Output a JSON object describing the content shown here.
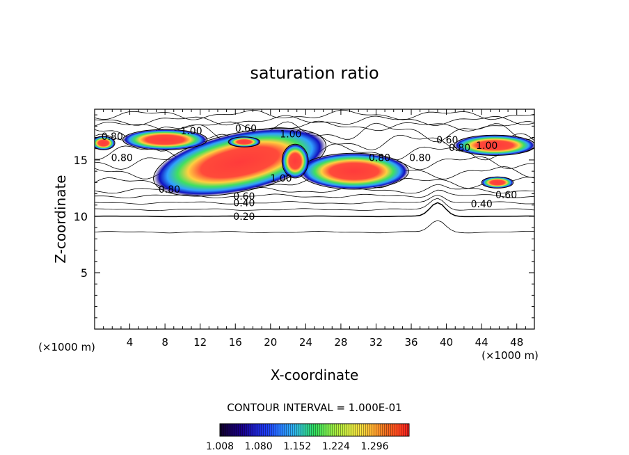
{
  "chart_data": {
    "type": "heatmap",
    "title": "saturation ratio",
    "xlabel": "X-coordinate",
    "ylabel": "Z-coordinate",
    "x_unit_label": "(×1000 m)",
    "z_unit_label": "(×1000 m)",
    "xlim": [
      0,
      50
    ],
    "ylim": [
      0,
      19.5
    ],
    "x_ticks": [
      "4",
      "8",
      "12",
      "16",
      "20",
      "24",
      "28",
      "32",
      "36",
      "40",
      "44",
      "48"
    ],
    "y_ticks": [
      "5",
      "10",
      "15"
    ],
    "contour_interval_label": "CONTOUR INTERVAL = 1.000E-01",
    "contour_labels": [
      {
        "text": "0.80",
        "x": 2.0,
        "z": 17.1
      },
      {
        "text": "1.00",
        "x": 11.0,
        "z": 17.6
      },
      {
        "text": "0.60",
        "x": 17.2,
        "z": 17.8
      },
      {
        "text": "1.00",
        "x": 22.3,
        "z": 17.3
      },
      {
        "text": "0.80",
        "x": 3.1,
        "z": 15.2
      },
      {
        "text": "0.80",
        "x": 8.5,
        "z": 12.4
      },
      {
        "text": "1.00",
        "x": 21.2,
        "z": 13.4
      },
      {
        "text": "0.80",
        "x": 32.4,
        "z": 15.2
      },
      {
        "text": "0.80",
        "x": 37.0,
        "z": 15.2
      },
      {
        "text": "0.60",
        "x": 40.1,
        "z": 16.8
      },
      {
        "text": "0.80",
        "x": 41.5,
        "z": 16.1
      },
      {
        "text": "1.00",
        "x": 44.6,
        "z": 16.3
      },
      {
        "text": "0.60",
        "x": 17.0,
        "z": 11.8
      },
      {
        "text": "0.40",
        "x": 17.0,
        "z": 11.2
      },
      {
        "text": "0.20",
        "x": 17.0,
        "z": 10.0
      },
      {
        "text": "0.60",
        "x": 46.8,
        "z": 11.9
      },
      {
        "text": "0.40",
        "x": 44.0,
        "z": 11.1
      }
    ],
    "colorbar": {
      "range": [
        1.008,
        1.36
      ],
      "tick_labels": [
        "1.008",
        "1.080",
        "1.152",
        "1.224",
        "1.296"
      ]
    },
    "regions": [
      {
        "cx": 16.5,
        "cz": 14.8,
        "rx": 10.0,
        "rz": 2.6,
        "rot": -12
      },
      {
        "cx": 29.5,
        "cz": 14.0,
        "rx": 6.2,
        "rz": 1.6,
        "rot": 0
      },
      {
        "cx": 8.0,
        "cz": 16.8,
        "rx": 4.8,
        "rz": 0.9,
        "rot": 0
      },
      {
        "cx": 45.5,
        "cz": 16.3,
        "rx": 4.6,
        "rz": 0.9,
        "rot": 0
      },
      {
        "cx": 1.0,
        "cz": 16.5,
        "rx": 1.3,
        "rz": 0.6,
        "rot": 0
      },
      {
        "cx": 45.8,
        "cz": 13.0,
        "rx": 1.8,
        "rz": 0.5,
        "rot": 0
      },
      {
        "cx": 22.8,
        "cz": 14.9,
        "rx": 1.5,
        "rz": 1.5,
        "rot": 0
      },
      {
        "cx": 17.0,
        "cz": 16.6,
        "rx": 1.8,
        "rz": 0.45,
        "rot": 0
      }
    ]
  },
  "colors": {
    "background": "#ffffff",
    "axes": "#000000",
    "high": "#ff3a3a",
    "low": "#1a005a"
  }
}
